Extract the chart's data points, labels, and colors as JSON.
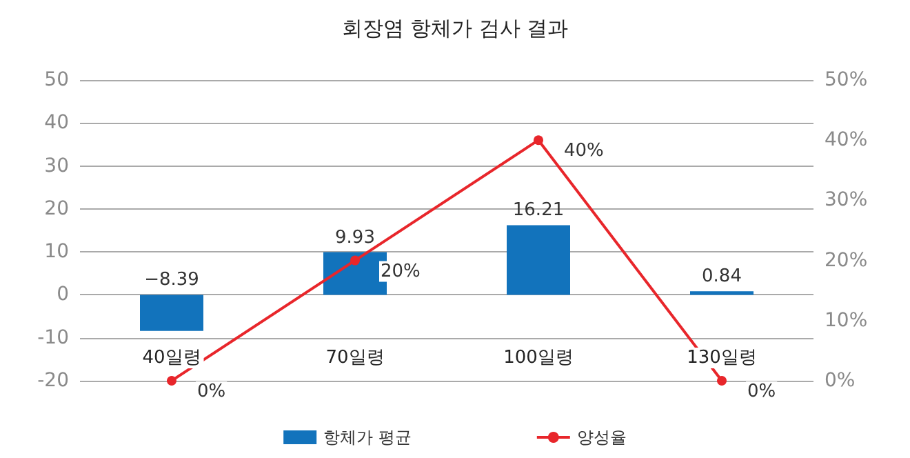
{
  "chart_data": {
    "type": "bar",
    "title": "회장염 항체가 검사 결과",
    "categories": [
      "40일령",
      "70일령",
      "100일령",
      "130일령"
    ],
    "series": [
      {
        "name": "항체가 평균",
        "color": "#1273bc",
        "values": [
          -8.39,
          9.93,
          16.21,
          0.84
        ],
        "value_labels": [
          "−8.39",
          "9.93",
          "16.21",
          "0.84"
        ]
      },
      {
        "name": "양성율",
        "type": "line",
        "axis": "y2",
        "color": "#e8262b",
        "values": [
          0,
          20,
          40,
          0
        ],
        "value_labels": [
          "0%",
          "20%",
          "40%",
          "0%"
        ]
      }
    ],
    "ylim": [
      -20,
      50
    ],
    "yticks": [
      -20,
      -10,
      0,
      10,
      20,
      30,
      40,
      50
    ],
    "y2lim": [
      0,
      50
    ],
    "y2ticks": [
      {
        "value": 0,
        "label": "0%"
      },
      {
        "value": 10,
        "label": "10%"
      },
      {
        "value": 20,
        "label": "20%"
      },
      {
        "value": 30,
        "label": "30%"
      },
      {
        "value": 40,
        "label": "40%"
      },
      {
        "value": 50,
        "label": "50%"
      }
    ],
    "grid": "y",
    "legend": "bottom",
    "marker": "circle",
    "line_style": "solid"
  }
}
